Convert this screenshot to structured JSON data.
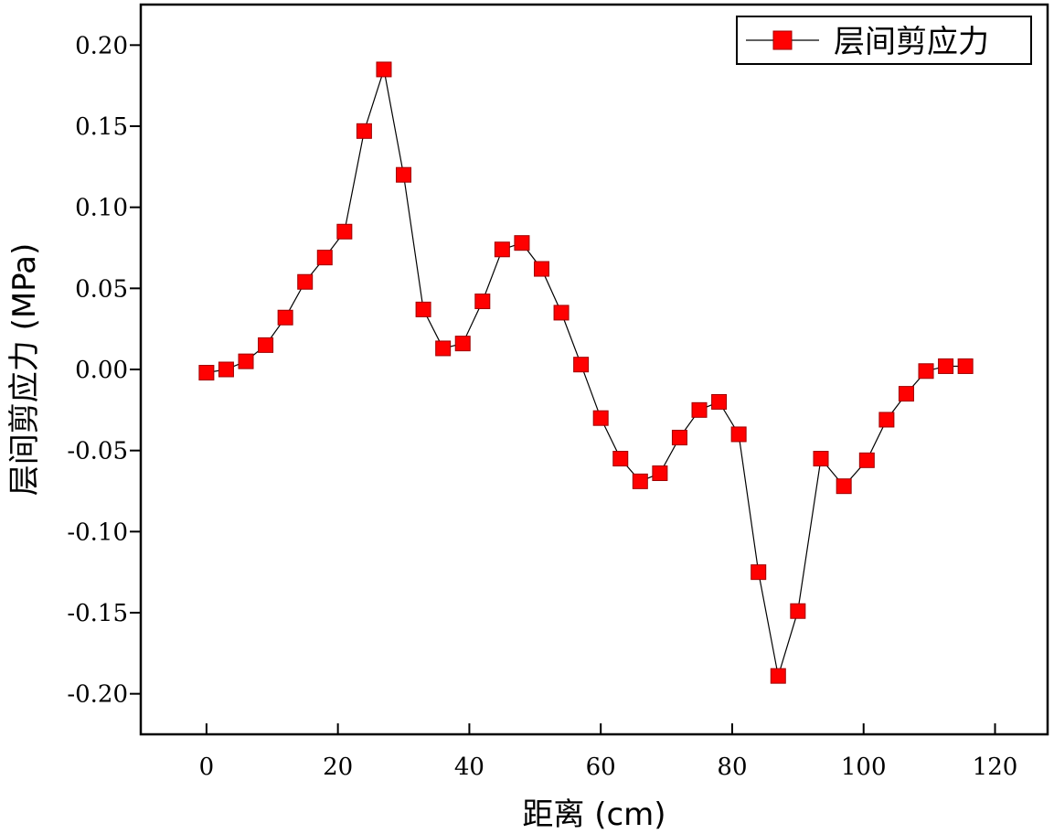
{
  "chart_data": {
    "type": "line",
    "xlabel": "距离 (cm)",
    "ylabel": "层间剪应力 (MPa)",
    "xlim": [
      -10,
      128
    ],
    "ylim": [
      -0.225,
      0.225
    ],
    "x_ticks": [
      0,
      20,
      40,
      60,
      80,
      100,
      120
    ],
    "x_tick_labels": [
      "0",
      "20",
      "40",
      "60",
      "80",
      "100",
      "120"
    ],
    "y_ticks": [
      -0.2,
      -0.15,
      -0.1,
      -0.05,
      0.0,
      0.05,
      0.1,
      0.15,
      0.2
    ],
    "y_tick_labels": [
      "-0.20",
      "-0.15",
      "-0.10",
      "-0.05",
      "0.00",
      "0.05",
      "0.10",
      "0.15",
      "0.20"
    ],
    "grid": false,
    "legend_position": "top-right",
    "series": [
      {
        "name": "层间剪应力",
        "color": "#ff0000",
        "line_color": "#000000",
        "marker": "square",
        "x": [
          0,
          3,
          6,
          9,
          12,
          15,
          18,
          21,
          24,
          27,
          30,
          33,
          36,
          39,
          42,
          45,
          48,
          51,
          54,
          57,
          60,
          63,
          66,
          69,
          72,
          75,
          78,
          81,
          84,
          87,
          90,
          93.5,
          97,
          100.5,
          103.5,
          106.5,
          109.5,
          112.5,
          115.5
        ],
        "y": [
          -0.002,
          0.0,
          0.005,
          0.015,
          0.032,
          0.054,
          0.069,
          0.085,
          0.147,
          0.185,
          0.12,
          0.037,
          0.013,
          0.016,
          0.042,
          0.074,
          0.078,
          0.062,
          0.035,
          0.003,
          -0.03,
          -0.055,
          -0.069,
          -0.064,
          -0.042,
          -0.025,
          -0.02,
          -0.04,
          -0.125,
          -0.189,
          -0.149,
          -0.055,
          -0.072,
          -0.056,
          -0.031,
          -0.015,
          -0.001,
          0.002,
          0.002
        ]
      }
    ]
  }
}
